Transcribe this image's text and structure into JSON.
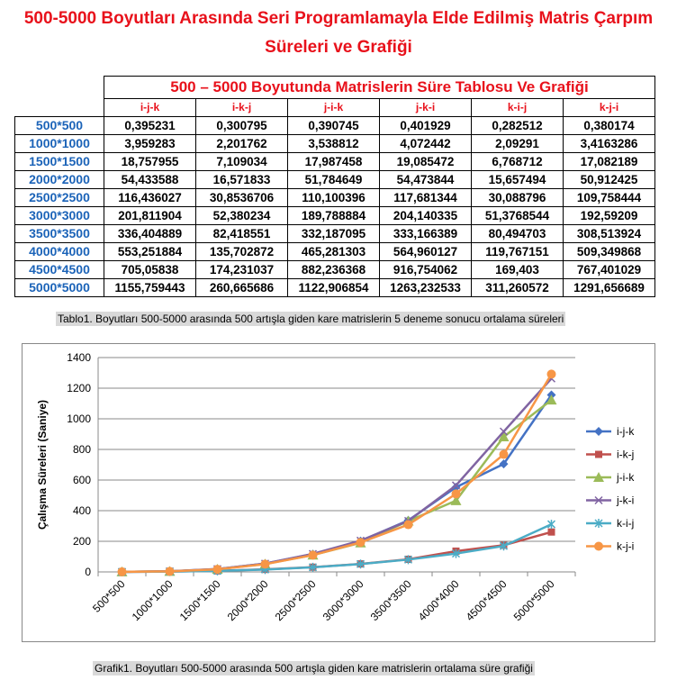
{
  "page": {
    "title_line1": "500-5000 Boyutları Arasında Seri Programlamayla Elde Edilmiş Matris Çarpım",
    "title_line2": "Süreleri ve Grafiği",
    "table_title": "500 – 5000 Boyutunda Matrislerin Süre Tablosu Ve Grafiği",
    "table_caption": "Tablo1. Boyutları 500-5000 arasında 500 artışla giden kare matrislerin 5 deneme sonucu ortalama süreleri",
    "chart_caption": "Grafik1. Boyutları 500-5000 arasında 500 artışla giden kare matrislerin ortalama süre grafiği"
  },
  "table": {
    "columns": [
      "i-j-k",
      "i-k-j",
      "j-i-k",
      "j-k-i",
      "k-i-j",
      "k-j-i"
    ],
    "rows": [
      {
        "size": "500*500",
        "values": [
          "0,395231",
          "0,300795",
          "0,390745",
          "0,401929",
          "0,282512",
          "0,380174"
        ]
      },
      {
        "size": "1000*1000",
        "values": [
          "3,959283",
          "2,201762",
          "3,538812",
          "4,072442",
          "2,09291",
          "3,4163286"
        ]
      },
      {
        "size": "1500*1500",
        "values": [
          "18,757955",
          "7,109034",
          "17,987458",
          "19,085472",
          "6,768712",
          "17,082189"
        ]
      },
      {
        "size": "2000*2000",
        "values": [
          "54,433588",
          "16,571833",
          "51,784649",
          "54,473844",
          "15,657494",
          "50,912425"
        ]
      },
      {
        "size": "2500*2500",
        "values": [
          "116,436027",
          "30,8536706",
          "110,100396",
          "117,681344",
          "30,088796",
          "109,758444"
        ]
      },
      {
        "size": "3000*3000",
        "values": [
          "201,811904",
          "52,380234",
          "189,788884",
          "204,140335",
          "51,3768544",
          "192,59209"
        ]
      },
      {
        "size": "3500*3500",
        "values": [
          "336,404889",
          "82,418551",
          "332,187095",
          "333,166389",
          "80,494703",
          "308,513924"
        ]
      },
      {
        "size": "4000*4000",
        "values": [
          "553,251884",
          "135,702872",
          "465,281303",
          "564,960127",
          "119,767151",
          "509,349868"
        ]
      },
      {
        "size": "4500*4500",
        "values": [
          "705,05838",
          "174,231037",
          "882,236368",
          "916,754062",
          "169,403",
          "767,401029"
        ]
      },
      {
        "size": "5000*5000",
        "values": [
          "1155,759443",
          "260,665686",
          "1122,906854",
          "1263,232533",
          "311,260572",
          "1291,656689"
        ]
      }
    ]
  },
  "chart_data": {
    "type": "line",
    "ylabel": "Çalışma Süreleri (Saniye)",
    "xlabel": "",
    "ylim": [
      0,
      1400
    ],
    "yticks": [
      0,
      200,
      400,
      600,
      800,
      1000,
      1200,
      1400
    ],
    "grid": "horizontal",
    "legend_position": "right",
    "categories": [
      "500*500",
      "1000*1000",
      "1500*1500",
      "2000*2000",
      "2500*2500",
      "3000*3000",
      "3500*3500",
      "4000*4000",
      "4500*4500",
      "5000*5000"
    ],
    "series": [
      {
        "name": "i-j-k",
        "color": "#4472c4",
        "marker": "diamond",
        "values": [
          0.395231,
          3.959283,
          18.757955,
          54.433588,
          116.436027,
          201.811904,
          336.404889,
          553.251884,
          705.05838,
          1155.759443
        ]
      },
      {
        "name": "i-k-j",
        "color": "#c0504d",
        "marker": "square",
        "values": [
          0.300795,
          2.201762,
          7.109034,
          16.571833,
          30.8536706,
          52.380234,
          82.418551,
          135.702872,
          174.231037,
          260.665686
        ]
      },
      {
        "name": "j-i-k",
        "color": "#9bbb59",
        "marker": "triangle",
        "values": [
          0.390745,
          3.538812,
          17.987458,
          51.784649,
          110.100396,
          189.788884,
          332.187095,
          465.281303,
          882.236368,
          1122.906854
        ]
      },
      {
        "name": "j-k-i",
        "color": "#8064a2",
        "marker": "x",
        "values": [
          0.401929,
          4.072442,
          19.085472,
          54.473844,
          117.681344,
          204.140335,
          333.166389,
          564.960127,
          916.754062,
          1263.232533
        ]
      },
      {
        "name": "k-i-j",
        "color": "#4bacc6",
        "marker": "star",
        "values": [
          0.282512,
          2.09291,
          6.768712,
          15.657494,
          30.088796,
          51.3768544,
          80.494703,
          119.767151,
          169.403,
          311.260572
        ]
      },
      {
        "name": "k-j-i",
        "color": "#f79646",
        "marker": "circle",
        "values": [
          0.380174,
          3.4163286,
          17.082189,
          50.912425,
          109.758444,
          192.59209,
          308.513924,
          509.349868,
          767.401029,
          1291.656689
        ]
      }
    ]
  }
}
